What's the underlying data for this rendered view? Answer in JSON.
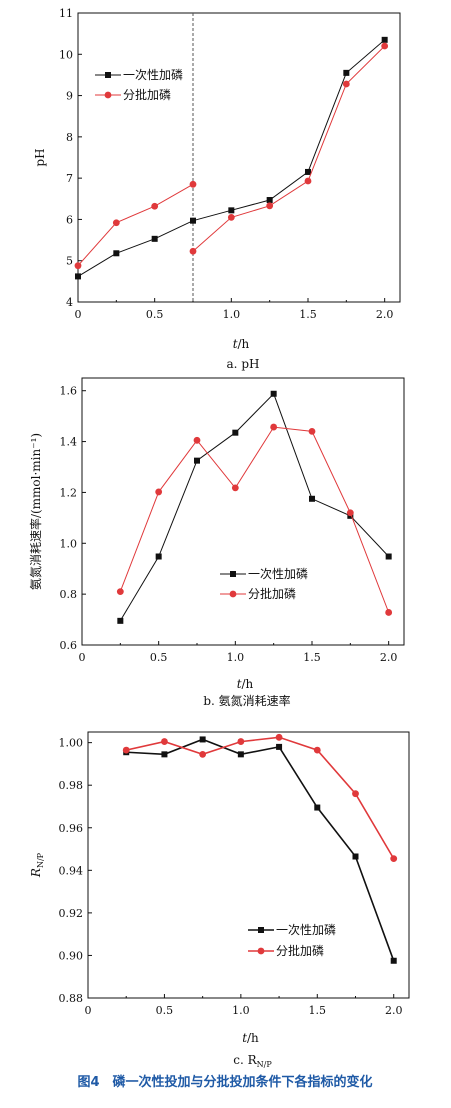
{
  "figure_caption": "图4　磷一次性投加与分批投加条件下各指标的变化",
  "colors": {
    "black_series": "#111111",
    "red_series": "#e0393b",
    "axis": "#111111"
  },
  "chart_data": [
    {
      "type": "line",
      "caption": "a. pH",
      "xlabel_italic": "t",
      "xlabel_rest": "/h",
      "ylabel": "pH",
      "xlim": [
        0,
        2.1
      ],
      "ylim": [
        4,
        11
      ],
      "xticks": [
        "0",
        "0.5",
        "1.0",
        "1.5",
        "2.0"
      ],
      "yticks": [
        "4",
        "5",
        "6",
        "7",
        "8",
        "9",
        "10",
        "11"
      ],
      "vline_x": 0.75,
      "legend_position": "top-left",
      "series": [
        {
          "name": "一次性加磷",
          "marker": "square",
          "color": "#111111",
          "segments": [
            {
              "x": [
                0,
                0.25,
                0.5,
                0.75,
                1.0,
                1.25,
                1.5,
                1.75,
                2.0
              ],
              "y": [
                4.62,
                5.18,
                5.53,
                5.97,
                6.22,
                6.47,
                7.15,
                9.55,
                10.35
              ]
            }
          ]
        },
        {
          "name": "分批加磷",
          "marker": "circle",
          "color": "#e0393b",
          "segments": [
            {
              "x": [
                0,
                0.25,
                0.5,
                0.75
              ],
              "y": [
                4.88,
                5.92,
                6.32,
                6.85
              ]
            },
            {
              "x": [
                0.75,
                1.0,
                1.25,
                1.5,
                1.75,
                2.0
              ],
              "y": [
                5.23,
                6.05,
                6.33,
                6.93,
                9.28,
                10.2
              ]
            }
          ]
        }
      ]
    },
    {
      "type": "line",
      "caption": "b. 氨氮消耗速率",
      "xlabel_italic": "t",
      "xlabel_rest": "/h",
      "ylabel": "氨氮消耗速率/(mmol·min⁻¹)",
      "xlim": [
        0,
        2.1
      ],
      "ylim": [
        0.6,
        1.65
      ],
      "xticks": [
        "0",
        "0.5",
        "1.0",
        "1.5",
        "2.0"
      ],
      "yticks": [
        "0.6",
        "0.8",
        "1.0",
        "1.2",
        "1.4",
        "1.6"
      ],
      "legend_position": "bottom-right",
      "series": [
        {
          "name": "一次性加磷",
          "marker": "square",
          "color": "#111111",
          "segments": [
            {
              "x": [
                0.25,
                0.5,
                0.75,
                1.0,
                1.25,
                1.5,
                1.75,
                2.0
              ],
              "y": [
                0.695,
                0.948,
                1.325,
                1.435,
                1.588,
                1.175,
                1.108,
                0.948
              ]
            }
          ]
        },
        {
          "name": "分批加磷",
          "marker": "circle",
          "color": "#e0393b",
          "segments": [
            {
              "x": [
                0.25,
                0.5,
                0.75,
                1.0,
                1.25,
                1.5,
                1.75,
                2.0
              ],
              "y": [
                0.81,
                1.202,
                1.405,
                1.218,
                1.457,
                1.44,
                1.12,
                0.728
              ]
            }
          ]
        }
      ]
    },
    {
      "type": "line",
      "caption_main": "c. R",
      "caption_sub": "N/P",
      "xlabel_italic": "t",
      "xlabel_rest": "/h",
      "ylabel_main": "R",
      "ylabel_sub": "N/P",
      "xlim": [
        0,
        2.1
      ],
      "ylim": [
        0.88,
        1.005
      ],
      "xticks": [
        "0",
        "0.5",
        "1.0",
        "1.5",
        "2.0"
      ],
      "yticks": [
        "0.88",
        "0.90",
        "0.92",
        "0.94",
        "0.96",
        "0.98",
        "1.00"
      ],
      "legend_position": "bottom-right",
      "series": [
        {
          "name": "一次性加磷",
          "marker": "square",
          "color": "#111111",
          "segments": [
            {
              "x": [
                0.25,
                0.5,
                0.75,
                1.0,
                1.25,
                1.5,
                1.75,
                2.0
              ],
              "y": [
                0.9955,
                0.9945,
                1.0015,
                0.9945,
                0.998,
                0.9695,
                0.9465,
                0.8975
              ]
            }
          ]
        },
        {
          "name": "分批加磷",
          "marker": "circle",
          "color": "#e0393b",
          "segments": [
            {
              "x": [
                0.25,
                0.5,
                0.75,
                1.0,
                1.25,
                1.5,
                1.75,
                2.0
              ],
              "y": [
                0.9965,
                1.0005,
                0.9945,
                1.0005,
                1.0025,
                0.9965,
                0.976,
                0.9455
              ]
            }
          ]
        }
      ]
    }
  ]
}
